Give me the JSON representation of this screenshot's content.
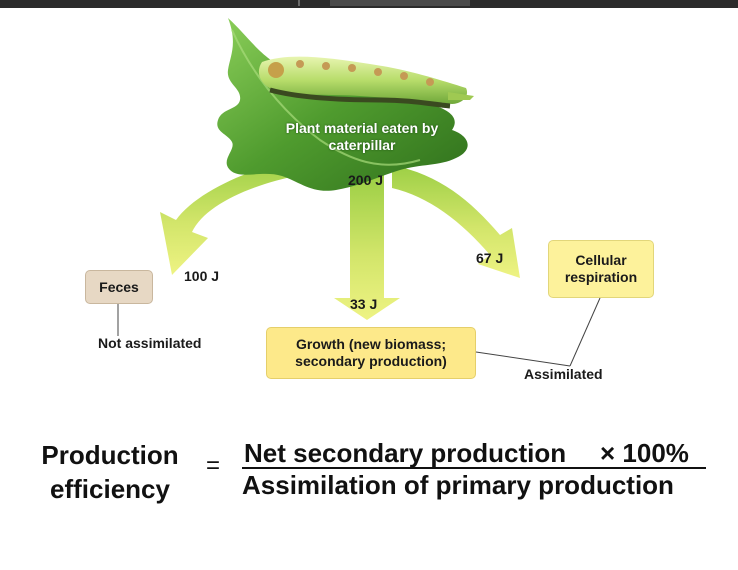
{
  "source_label": "Plant material eaten by caterpillar",
  "source_energy": "200 J",
  "flows": {
    "feces_energy": "100 J",
    "growth_energy": "33 J",
    "respiration_energy": "67 J"
  },
  "boxes": {
    "feces": "Feces",
    "growth": "Growth (new biomass; secondary production)",
    "respiration": "Cellular respiration"
  },
  "annotations": {
    "not_assimilated": "Not assimilated",
    "assimilated": "Assimilated"
  },
  "formula": {
    "lhs": "Production efficiency",
    "equals": "=",
    "numerator": "Net secondary production",
    "multiplier": "× 100%",
    "denominator": "Assimilation of primary production"
  },
  "colors": {
    "leaf": "#5fa83a",
    "arrow_light": "#e8f07a",
    "arrow_dark": "#8cc63f",
    "feces_box": "#e7d8c4",
    "yellow_box": "#fdf29b"
  }
}
